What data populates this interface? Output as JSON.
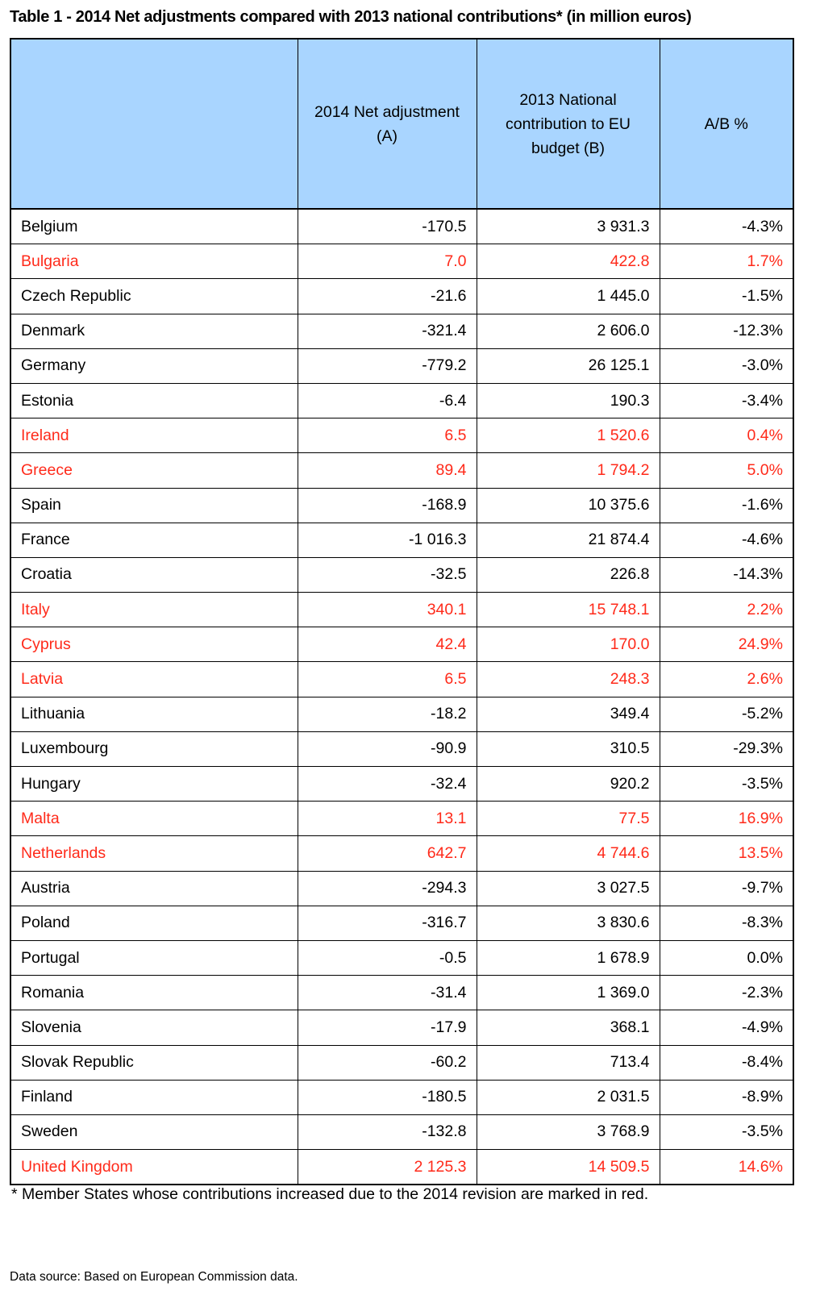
{
  "title": "Table 1 - 2014 Net adjustments compared with 2013 national contributions* (in million euros)",
  "colors": {
    "header_bg": "#a9d5ff",
    "highlight_red": "#ff2a1a",
    "text": "#000000"
  },
  "table": {
    "headers": [
      "",
      "2014 Net adjustment (A)",
      "2013 National contribution to EU budget (B)",
      "A/B %"
    ],
    "rows": [
      {
        "country": "Belgium",
        "a": "-170.5",
        "b": "3 931.3",
        "ab": "-4.3%",
        "red": false
      },
      {
        "country": "Bulgaria",
        "a": "7.0",
        "b": "422.8",
        "ab": "1.7%",
        "red": true
      },
      {
        "country": "Czech Republic",
        "a": "-21.6",
        "b": "1 445.0",
        "ab": "-1.5%",
        "red": false
      },
      {
        "country": "Denmark",
        "a": "-321.4",
        "b": "2 606.0",
        "ab": "-12.3%",
        "red": false
      },
      {
        "country": "Germany",
        "a": "-779.2",
        "b": "26 125.1",
        "ab": "-3.0%",
        "red": false
      },
      {
        "country": "Estonia",
        "a": "-6.4",
        "b": "190.3",
        "ab": "-3.4%",
        "red": false
      },
      {
        "country": "Ireland",
        "a": "6.5",
        "b": "1 520.6",
        "ab": "0.4%",
        "red": true
      },
      {
        "country": "Greece",
        "a": "89.4",
        "b": "1 794.2",
        "ab": "5.0%",
        "red": true
      },
      {
        "country": "Spain",
        "a": "-168.9",
        "b": "10 375.6",
        "ab": "-1.6%",
        "red": false
      },
      {
        "country": "France",
        "a": "-1 016.3",
        "b": "21 874.4",
        "ab": "-4.6%",
        "red": false
      },
      {
        "country": "Croatia",
        "a": "-32.5",
        "b": "226.8",
        "ab": "-14.3%",
        "red": false
      },
      {
        "country": "Italy",
        "a": "340.1",
        "b": "15 748.1",
        "ab": "2.2%",
        "red": true
      },
      {
        "country": "Cyprus",
        "a": "42.4",
        "b": "170.0",
        "ab": "24.9%",
        "red": true
      },
      {
        "country": "Latvia",
        "a": "6.5",
        "b": "248.3",
        "ab": "2.6%",
        "red": true
      },
      {
        "country": "Lithuania",
        "a": "-18.2",
        "b": "349.4",
        "ab": "-5.2%",
        "red": false
      },
      {
        "country": "Luxembourg",
        "a": "-90.9",
        "b": "310.5",
        "ab": "-29.3%",
        "red": false
      },
      {
        "country": "Hungary",
        "a": "-32.4",
        "b": "920.2",
        "ab": "-3.5%",
        "red": false
      },
      {
        "country": "Malta",
        "a": "13.1",
        "b": "77.5",
        "ab": "16.9%",
        "red": true
      },
      {
        "country": "Netherlands",
        "a": "642.7",
        "b": "4 744.6",
        "ab": "13.5%",
        "red": true
      },
      {
        "country": "Austria",
        "a": "-294.3",
        "b": "3 027.5",
        "ab": "-9.7%",
        "red": false
      },
      {
        "country": "Poland",
        "a": "-316.7",
        "b": "3 830.6",
        "ab": "-8.3%",
        "red": false
      },
      {
        "country": "Portugal",
        "a": "-0.5",
        "b": "1 678.9",
        "ab": "0.0%",
        "red": false
      },
      {
        "country": "Romania",
        "a": "-31.4",
        "b": "1 369.0",
        "ab": "-2.3%",
        "red": false
      },
      {
        "country": "Slovenia",
        "a": "-17.9",
        "b": "368.1",
        "ab": "-4.9%",
        "red": false
      },
      {
        "country": "Slovak Republic",
        "a": "-60.2",
        "b": "713.4",
        "ab": "-8.4%",
        "red": false
      },
      {
        "country": "Finland",
        "a": "-180.5",
        "b": "2 031.5",
        "ab": "-8.9%",
        "red": false
      },
      {
        "country": "Sweden",
        "a": "-132.8",
        "b": "3 768.9",
        "ab": "-3.5%",
        "red": false
      },
      {
        "country": "United Kingdom",
        "a": "2 125.3",
        "b": "14 509.5",
        "ab": "14.6%",
        "red": true
      }
    ]
  },
  "footnote": "* Member States whose contributions increased due to the 2014 revision are marked in red.",
  "source": "Data source: Based on European Commission data."
}
